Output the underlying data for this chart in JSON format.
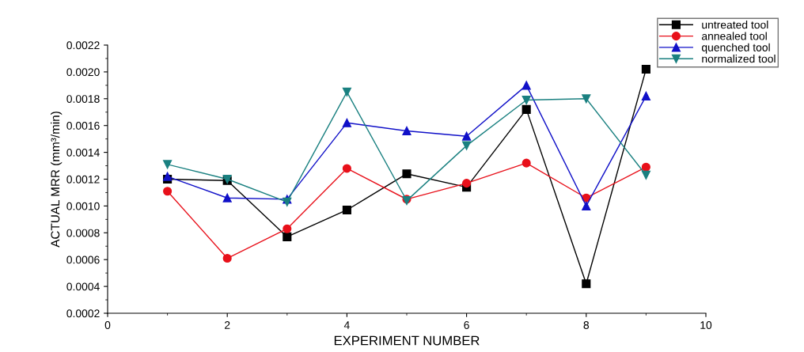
{
  "chart_data": {
    "type": "line",
    "xlabel": "EXPERIMENT NUMBER",
    "ylabel": "ACTUAL MRR (mm³/min)",
    "x": [
      1,
      2,
      3,
      4,
      5,
      6,
      7,
      8,
      9
    ],
    "series": [
      {
        "name": "untreated tool",
        "color": "#000000",
        "marker": "square",
        "values": [
          0.0012,
          0.00119,
          0.00077,
          0.00097,
          0.00124,
          0.00114,
          0.00172,
          0.00042,
          0.00202
        ]
      },
      {
        "name": "annealed tool",
        "color": "#e8101a",
        "marker": "circle",
        "values": [
          0.00111,
          0.00061,
          0.00083,
          0.00128,
          0.00105,
          0.00117,
          0.00132,
          0.00106,
          0.00129
        ]
      },
      {
        "name": "quenched tool",
        "color": "#1010c8",
        "marker": "triangle",
        "values": [
          0.00122,
          0.00106,
          0.00105,
          0.00162,
          0.00156,
          0.00152,
          0.0019,
          0.001,
          0.00182
        ]
      },
      {
        "name": "normalized tool",
        "color": "#1a8080",
        "marker": "triangle_down",
        "values": [
          0.00131,
          0.0012,
          0.00103,
          0.00185,
          0.00104,
          0.00145,
          0.00179,
          0.0018,
          0.00123
        ]
      }
    ],
    "xlim": [
      0,
      10
    ],
    "xticks": [
      0,
      2,
      4,
      6,
      8,
      10
    ],
    "ylim": [
      0.0002,
      0.0022
    ],
    "yticks": [
      {
        "value": 0.0002,
        "label": "0.0002"
      },
      {
        "value": 0.0004,
        "label": "0.0004"
      },
      {
        "value": 0.0006,
        "label": "0.0006"
      },
      {
        "value": 0.0008,
        "label": "0.0008"
      },
      {
        "value": 0.001,
        "label": "0.0010"
      },
      {
        "value": 0.0012,
        "label": "0.0012"
      },
      {
        "value": 0.0014,
        "label": "0.0014"
      },
      {
        "value": 0.0016,
        "label": "0.0016"
      },
      {
        "value": 0.0018,
        "label": "0.0018"
      },
      {
        "value": 0.002,
        "label": "0.0020"
      },
      {
        "value": 0.0022,
        "label": "0.0022"
      }
    ],
    "grid": false,
    "legend": "top right",
    "line_style": "solid"
  }
}
